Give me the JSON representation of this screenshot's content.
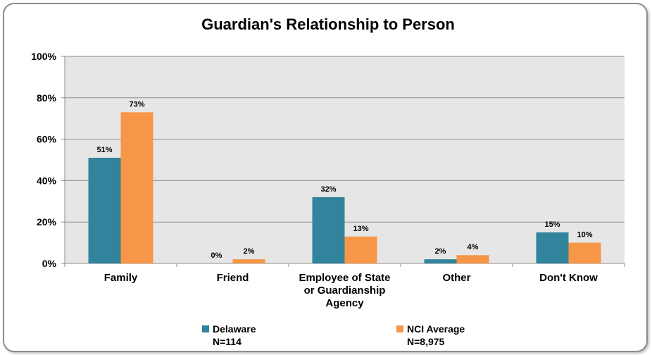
{
  "chart_data": {
    "type": "bar",
    "title": "Guardian's Relationship to Person",
    "categories": [
      [
        "Family"
      ],
      [
        "Friend"
      ],
      [
        "Employee of State",
        "or Guardianship",
        "Agency"
      ],
      [
        "Other"
      ],
      [
        "Don't Know"
      ]
    ],
    "series": [
      {
        "name": "Delaware",
        "subtitle": "N=114",
        "values": [
          51,
          0,
          32,
          2,
          15
        ],
        "labels": [
          "51%",
          "0%",
          "32%",
          "2%",
          "15%"
        ],
        "color": "#31849b"
      },
      {
        "name": "NCI Average",
        "subtitle": "N=8,975",
        "values": [
          73,
          2,
          13,
          4,
          10
        ],
        "labels": [
          "73%",
          "2%",
          "13%",
          "4%",
          "10%"
        ],
        "color": "#f79646"
      }
    ],
    "yticks": [
      "0%",
      "20%",
      "40%",
      "60%",
      "80%",
      "100%"
    ],
    "ylim": [
      0,
      100
    ],
    "grid": true,
    "plot_background": "#e6e6e6",
    "legend_position": "bottom"
  }
}
